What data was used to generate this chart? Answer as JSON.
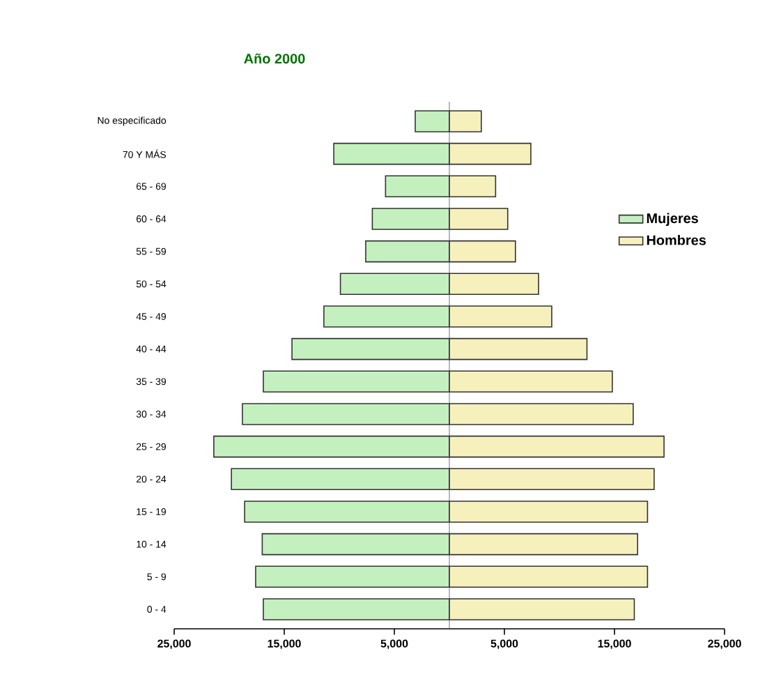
{
  "chart_data": {
    "type": "bar",
    "orientation": "horizontal",
    "title": "Año 2000",
    "categories": [
      "No especificado",
      "70 Y MÁS",
      "65 - 69",
      "60 - 64",
      "55 - 59",
      "50 - 54",
      "45 - 49",
      "40 - 44",
      "35 - 39",
      "30 - 34",
      "25 - 29",
      "20 - 24",
      "15 - 19",
      "10 - 14",
      "5 - 9",
      "0 - 4"
    ],
    "series": [
      {
        "name": "Mujeres",
        "color": "#c4f0bf",
        "values": [
          -3100,
          -10500,
          -5800,
          -7000,
          -7600,
          -9900,
          -11400,
          -14300,
          -16900,
          -18800,
          -21400,
          -19800,
          -18600,
          -17000,
          -17600,
          -16900
        ]
      },
      {
        "name": "Hombres",
        "color": "#f6f1bc",
        "values": [
          2900,
          7400,
          4200,
          5300,
          6000,
          8100,
          9300,
          12500,
          14800,
          16700,
          19500,
          18600,
          18000,
          17100,
          18000,
          16800
        ]
      }
    ],
    "xlim": [
      -25000,
      25000
    ],
    "xticks": [
      {
        "value": -25000,
        "label": "25,000"
      },
      {
        "value": -15000,
        "label": "15,000"
      },
      {
        "value": -5000,
        "label": "5,000"
      },
      {
        "value": 5000,
        "label": "5,000"
      },
      {
        "value": 15000,
        "label": "15,000"
      },
      {
        "value": 25000,
        "label": "25,000"
      }
    ],
    "stacked": true,
    "legend": "right"
  }
}
